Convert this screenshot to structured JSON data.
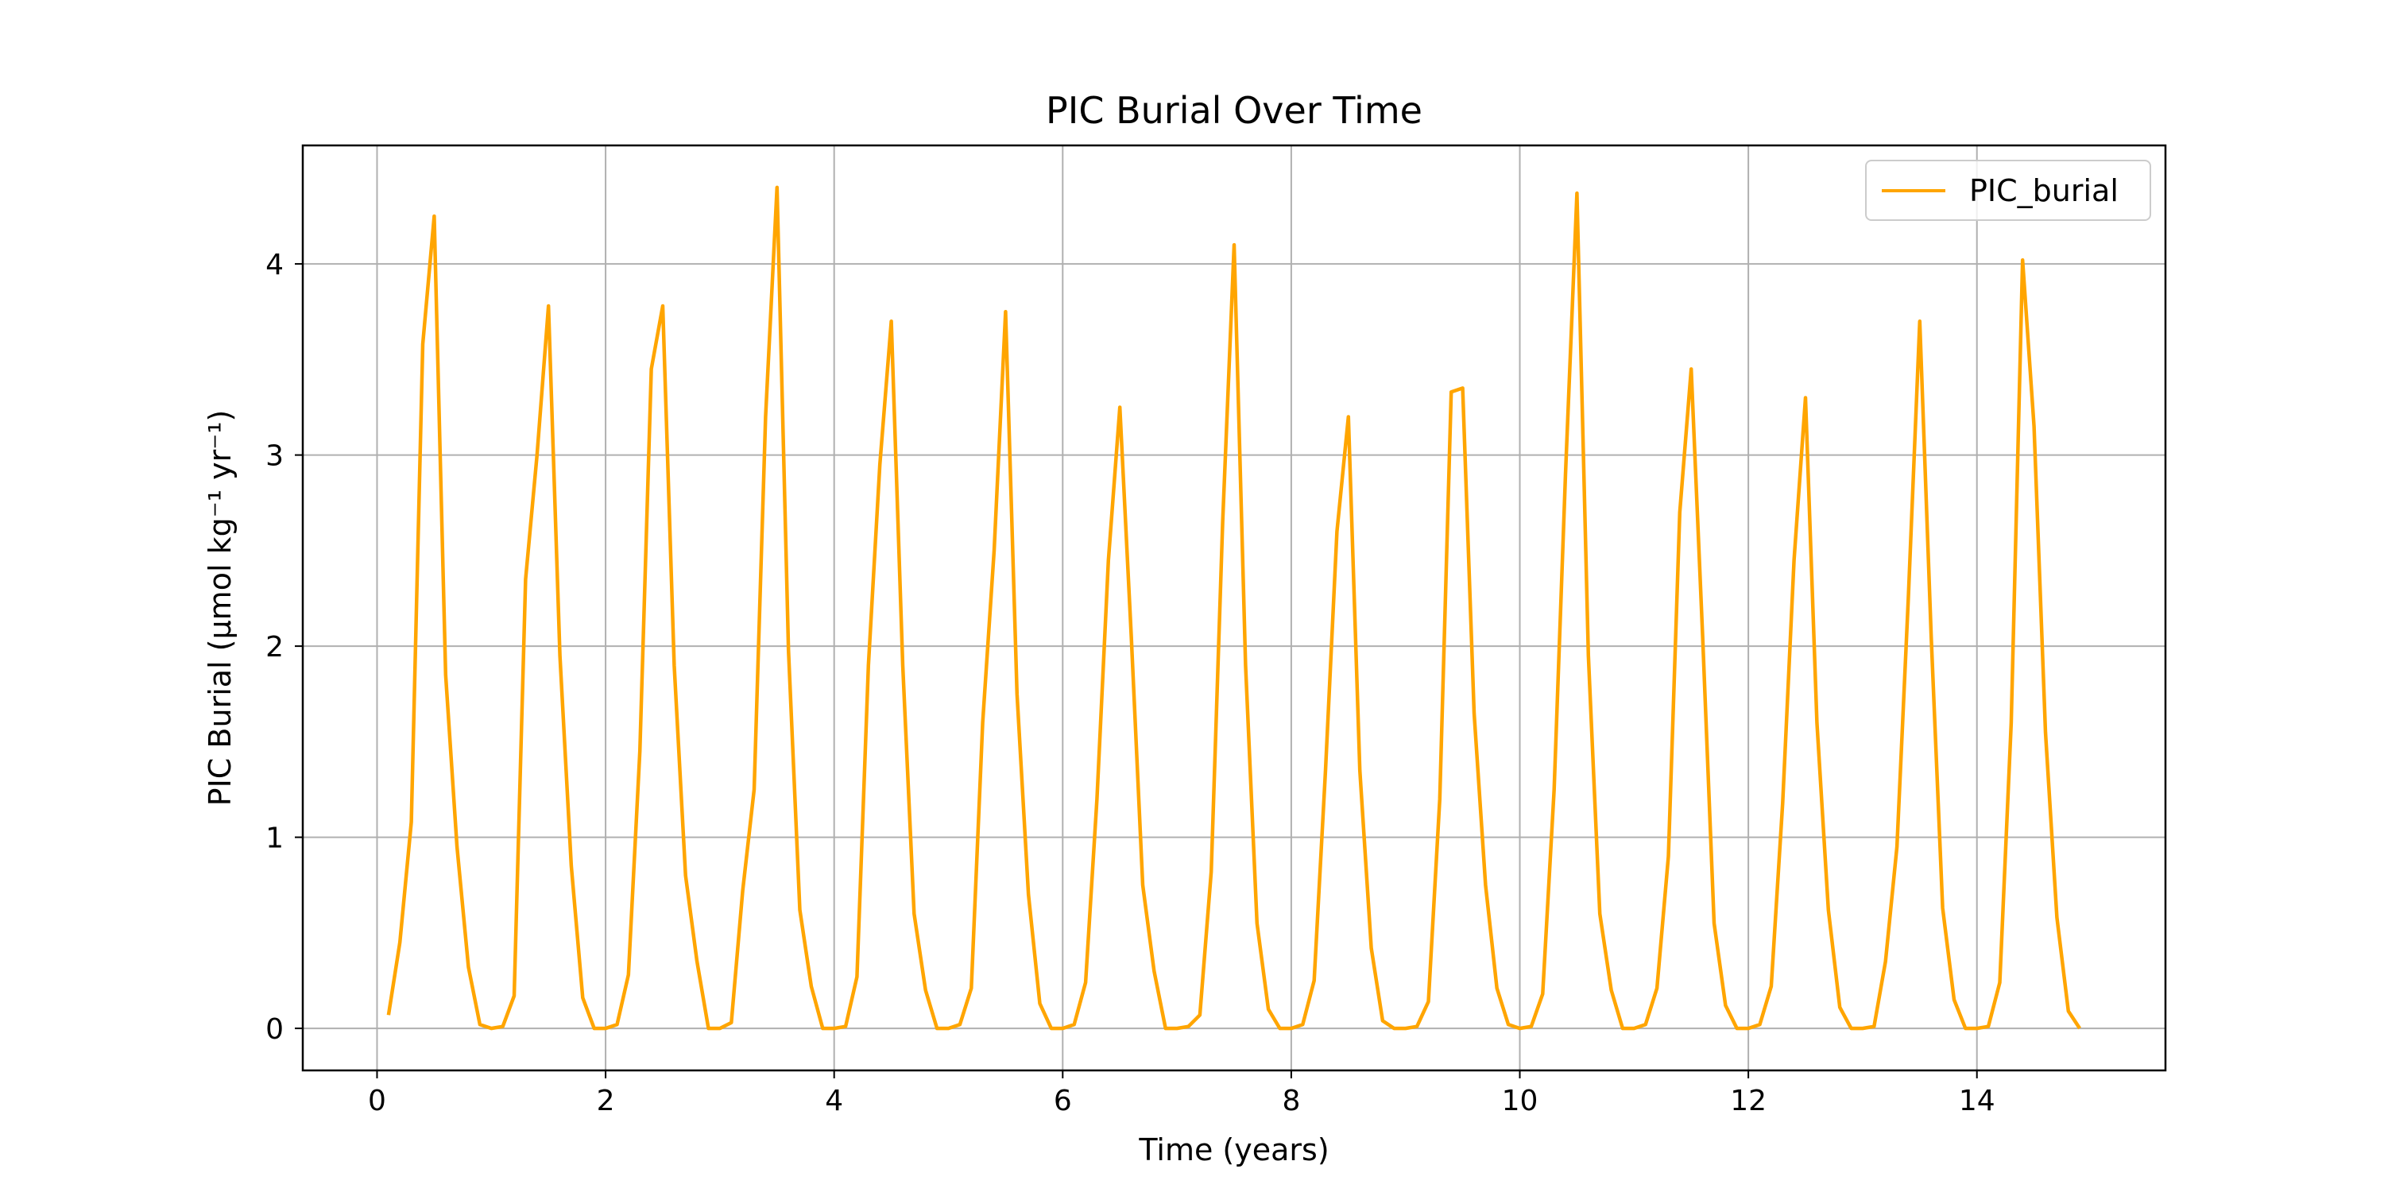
{
  "chart_data": {
    "type": "line",
    "title": "PIC Burial Over Time",
    "xlabel": "Time (years)",
    "ylabel": "PIC Burial (μmol kg⁻¹ yr⁻¹)",
    "xlim": [
      -0.65,
      15.65
    ],
    "ylim": [
      -0.22,
      4.62
    ],
    "xticks": [
      0,
      2,
      4,
      6,
      8,
      10,
      12,
      14
    ],
    "yticks": [
      0,
      1,
      2,
      3,
      4
    ],
    "grid": true,
    "legend_position": "top-right",
    "series": [
      {
        "name": "PIC_burial",
        "color": "#FFA500",
        "x": [
          0.1,
          0.2,
          0.3,
          0.4,
          0.5,
          0.6,
          0.7,
          0.8,
          0.9,
          1.0,
          1.1,
          1.2,
          1.3,
          1.4,
          1.5,
          1.6,
          1.7,
          1.8,
          1.9,
          2.0,
          2.1,
          2.2,
          2.3,
          2.4,
          2.5,
          2.6,
          2.7,
          2.8,
          2.9,
          3.0,
          3.1,
          3.2,
          3.3,
          3.4,
          3.5,
          3.6,
          3.7,
          3.8,
          3.9,
          4.0,
          4.1,
          4.2,
          4.3,
          4.4,
          4.5,
          4.6,
          4.7,
          4.8,
          4.9,
          5.0,
          5.1,
          5.2,
          5.3,
          5.4,
          5.5,
          5.6,
          5.7,
          5.8,
          5.9,
          6.0,
          6.1,
          6.2,
          6.3,
          6.4,
          6.5,
          6.6,
          6.7,
          6.8,
          6.9,
          7.0,
          7.1,
          7.2,
          7.3,
          7.4,
          7.5,
          7.6,
          7.7,
          7.8,
          7.9,
          8.0,
          8.1,
          8.2,
          8.3,
          8.4,
          8.5,
          8.6,
          8.7,
          8.8,
          8.9,
          9.0,
          9.1,
          9.2,
          9.3,
          9.4,
          9.5,
          9.6,
          9.7,
          9.8,
          9.9,
          10.0,
          10.1,
          10.2,
          10.3,
          10.4,
          10.5,
          10.6,
          10.7,
          10.8,
          10.9,
          11.0,
          11.1,
          11.2,
          11.3,
          11.4,
          11.5,
          11.6,
          11.7,
          11.8,
          11.9,
          12.0,
          12.1,
          12.2,
          12.3,
          12.4,
          12.5,
          12.6,
          12.7,
          12.8,
          12.9,
          13.0,
          13.1,
          13.2,
          13.3,
          13.4,
          13.5,
          13.6,
          13.7,
          13.8,
          13.9,
          14.0,
          14.1,
          14.2,
          14.3,
          14.4,
          14.5,
          14.6,
          14.7,
          14.8,
          14.9
        ],
        "y": [
          0.07,
          0.45,
          1.08,
          3.58,
          4.25,
          1.85,
          0.95,
          0.32,
          0.02,
          0.0,
          0.01,
          0.17,
          2.35,
          3.0,
          3.78,
          1.95,
          0.85,
          0.16,
          0.0,
          0.0,
          0.02,
          0.28,
          1.45,
          3.45,
          3.78,
          1.9,
          0.8,
          0.35,
          0.0,
          0.0,
          0.03,
          0.72,
          1.25,
          3.2,
          4.4,
          1.98,
          0.62,
          0.22,
          0.0,
          0.0,
          0.01,
          0.27,
          1.9,
          2.95,
          3.7,
          1.9,
          0.6,
          0.2,
          0.0,
          0.0,
          0.02,
          0.21,
          1.6,
          2.5,
          3.75,
          1.75,
          0.7,
          0.13,
          0.0,
          0.0,
          0.02,
          0.24,
          1.2,
          2.45,
          3.25,
          2.05,
          0.75,
          0.3,
          0.0,
          0.0,
          0.01,
          0.07,
          0.82,
          2.65,
          4.1,
          1.9,
          0.55,
          0.1,
          0.0,
          0.0,
          0.02,
          0.25,
          1.35,
          2.6,
          3.2,
          1.35,
          0.42,
          0.04,
          0.0,
          0.0,
          0.01,
          0.14,
          1.2,
          3.33,
          3.35,
          1.65,
          0.75,
          0.21,
          0.02,
          0.0,
          0.01,
          0.18,
          1.25,
          2.9,
          4.37,
          1.95,
          0.6,
          0.2,
          0.0,
          0.0,
          0.02,
          0.21,
          0.9,
          2.7,
          3.45,
          2.05,
          0.55,
          0.12,
          0.0,
          0.0,
          0.02,
          0.22,
          1.18,
          2.45,
          3.3,
          1.6,
          0.62,
          0.11,
          0.0,
          0.0,
          0.01,
          0.35,
          0.95,
          2.25,
          3.7,
          2.05,
          0.63,
          0.15,
          0.0,
          0.0,
          0.01,
          0.24,
          1.6,
          4.02,
          3.15,
          1.55,
          0.58,
          0.09,
          0.0
        ]
      }
    ]
  }
}
